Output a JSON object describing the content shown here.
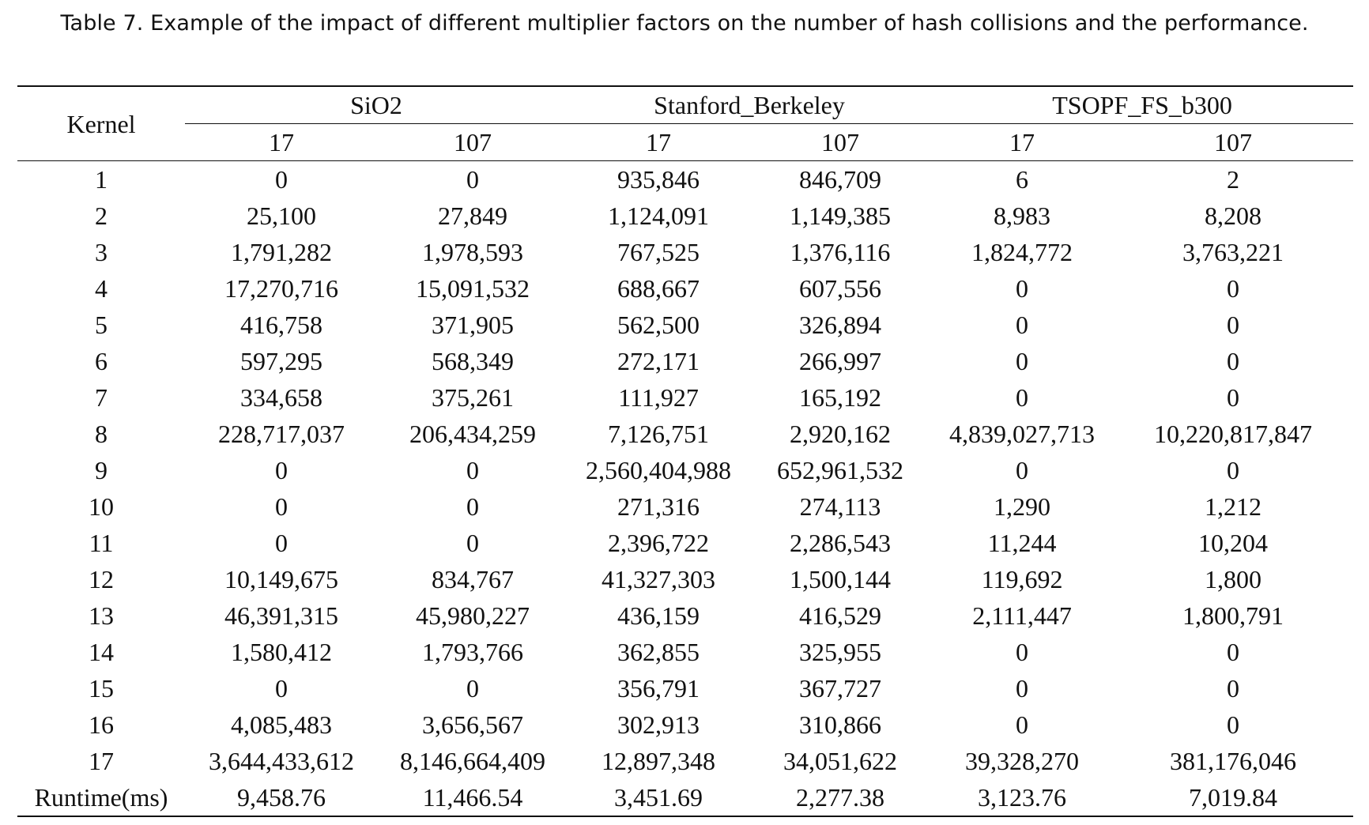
{
  "caption": "Table 7.  Example of the impact of different multiplier factors on the number of hash collisions and the performance.",
  "table": {
    "row_header": "Kernel",
    "groups": [
      {
        "name": "SiO2",
        "cols": [
          "17",
          "107"
        ]
      },
      {
        "name": "Stanford_Berkeley",
        "cols": [
          "17",
          "107"
        ]
      },
      {
        "name": "TSOPF_FS_b300",
        "cols": [
          "17",
          "107"
        ]
      }
    ],
    "rows": [
      {
        "label": "1",
        "values": [
          "0",
          "0",
          "935,846",
          "846,709",
          "6",
          "2"
        ]
      },
      {
        "label": "2",
        "values": [
          "25,100",
          "27,849",
          "1,124,091",
          "1,149,385",
          "8,983",
          "8,208"
        ]
      },
      {
        "label": "3",
        "values": [
          "1,791,282",
          "1,978,593",
          "767,525",
          "1,376,116",
          "1,824,772",
          "3,763,221"
        ]
      },
      {
        "label": "4",
        "values": [
          "17,270,716",
          "15,091,532",
          "688,667",
          "607,556",
          "0",
          "0"
        ]
      },
      {
        "label": "5",
        "values": [
          "416,758",
          "371,905",
          "562,500",
          "326,894",
          "0",
          "0"
        ]
      },
      {
        "label": "6",
        "values": [
          "597,295",
          "568,349",
          "272,171",
          "266,997",
          "0",
          "0"
        ]
      },
      {
        "label": "7",
        "values": [
          "334,658",
          "375,261",
          "111,927",
          "165,192",
          "0",
          "0"
        ]
      },
      {
        "label": "8",
        "values": [
          "228,717,037",
          "206,434,259",
          "7,126,751",
          "2,920,162",
          "4,839,027,713",
          "10,220,817,847"
        ]
      },
      {
        "label": "9",
        "values": [
          "0",
          "0",
          "2,560,404,988",
          "652,961,532",
          "0",
          "0"
        ]
      },
      {
        "label": "10",
        "values": [
          "0",
          "0",
          "271,316",
          "274,113",
          "1,290",
          "1,212"
        ]
      },
      {
        "label": "11",
        "values": [
          "0",
          "0",
          "2,396,722",
          "2,286,543",
          "11,244",
          "10,204"
        ]
      },
      {
        "label": "12",
        "values": [
          "10,149,675",
          "834,767",
          "41,327,303",
          "1,500,144",
          "119,692",
          "1,800"
        ]
      },
      {
        "label": "13",
        "values": [
          "46,391,315",
          "45,980,227",
          "436,159",
          "416,529",
          "2,111,447",
          "1,800,791"
        ]
      },
      {
        "label": "14",
        "values": [
          "1,580,412",
          "1,793,766",
          "362,855",
          "325,955",
          "0",
          "0"
        ]
      },
      {
        "label": "15",
        "values": [
          "0",
          "0",
          "356,791",
          "367,727",
          "0",
          "0"
        ]
      },
      {
        "label": "16",
        "values": [
          "4,085,483",
          "3,656,567",
          "302,913",
          "310,866",
          "0",
          "0"
        ]
      },
      {
        "label": "17",
        "values": [
          "3,644,433,612",
          "8,146,664,409",
          "12,897,348",
          "34,051,622",
          "39,328,270",
          "381,176,046"
        ]
      },
      {
        "label": "Runtime(ms)",
        "values": [
          "9,458.76",
          "11,466.54",
          "3,451.69",
          "2,277.38",
          "3,123.76",
          "7,019.84"
        ]
      }
    ]
  }
}
